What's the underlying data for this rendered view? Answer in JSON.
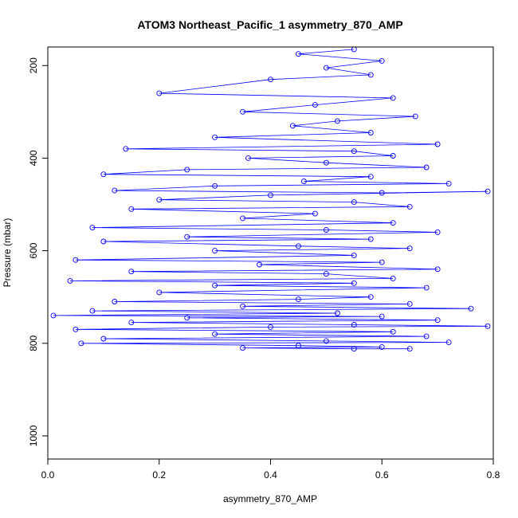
{
  "chart_data": {
    "type": "scatter",
    "title": "ATOM3 Northeast_Pacific_1 asymmetry_870_AMP",
    "xlabel": "asymmetry_870_AMP",
    "ylabel": "Pressure (mbar)",
    "xlim": [
      0.0,
      0.8
    ],
    "ylim": [
      1050,
      160
    ],
    "y_reversed": true,
    "x_ticks": [
      0.0,
      0.2,
      0.4,
      0.6,
      0.8
    ],
    "x_tick_labels": [
      "0.0",
      "0.2",
      "0.4",
      "0.6",
      "0.8"
    ],
    "y_ticks": [
      200,
      400,
      600,
      800,
      1000
    ],
    "y_tick_labels": [
      "200",
      "400",
      "600",
      "800",
      "1000"
    ],
    "grid": false,
    "legend": "none",
    "series": [
      {
        "color": "#0000ff",
        "marker": "open-circle",
        "connected": true,
        "points": [
          [
            0.55,
            165
          ],
          [
            0.45,
            175
          ],
          [
            0.6,
            190
          ],
          [
            0.5,
            205
          ],
          [
            0.58,
            220
          ],
          [
            0.4,
            230
          ],
          [
            0.2,
            260
          ],
          [
            0.62,
            270
          ],
          [
            0.48,
            285
          ],
          [
            0.35,
            300
          ],
          [
            0.66,
            310
          ],
          [
            0.52,
            320
          ],
          [
            0.44,
            330
          ],
          [
            0.58,
            345
          ],
          [
            0.3,
            355
          ],
          [
            0.7,
            370
          ],
          [
            0.14,
            380
          ],
          [
            0.55,
            385
          ],
          [
            0.62,
            395
          ],
          [
            0.36,
            400
          ],
          [
            0.5,
            410
          ],
          [
            0.68,
            420
          ],
          [
            0.25,
            425
          ],
          [
            0.1,
            435
          ],
          [
            0.58,
            440
          ],
          [
            0.46,
            450
          ],
          [
            0.72,
            455
          ],
          [
            0.3,
            460
          ],
          [
            0.12,
            470
          ],
          [
            0.6,
            475
          ],
          [
            0.79,
            472
          ],
          [
            0.4,
            480
          ],
          [
            0.2,
            490
          ],
          [
            0.55,
            495
          ],
          [
            0.65,
            505
          ],
          [
            0.15,
            510
          ],
          [
            0.48,
            520
          ],
          [
            0.35,
            530
          ],
          [
            0.62,
            540
          ],
          [
            0.08,
            550
          ],
          [
            0.5,
            555
          ],
          [
            0.7,
            560
          ],
          [
            0.25,
            570
          ],
          [
            0.58,
            575
          ],
          [
            0.1,
            580
          ],
          [
            0.45,
            590
          ],
          [
            0.65,
            595
          ],
          [
            0.3,
            600
          ],
          [
            0.55,
            610
          ],
          [
            0.05,
            620
          ],
          [
            0.6,
            625
          ],
          [
            0.38,
            630
          ],
          [
            0.7,
            640
          ],
          [
            0.15,
            645
          ],
          [
            0.5,
            650
          ],
          [
            0.62,
            660
          ],
          [
            0.04,
            665
          ],
          [
            0.55,
            670
          ],
          [
            0.3,
            675
          ],
          [
            0.68,
            680
          ],
          [
            0.2,
            690
          ],
          [
            0.58,
            700
          ],
          [
            0.45,
            705
          ],
          [
            0.12,
            710
          ],
          [
            0.65,
            715
          ],
          [
            0.35,
            720
          ],
          [
            0.76,
            725
          ],
          [
            0.08,
            730
          ],
          [
            0.52,
            735
          ],
          [
            0.01,
            740
          ],
          [
            0.6,
            742
          ],
          [
            0.25,
            745
          ],
          [
            0.7,
            750
          ],
          [
            0.15,
            755
          ],
          [
            0.55,
            760
          ],
          [
            0.79,
            763
          ],
          [
            0.4,
            765
          ],
          [
            0.05,
            770
          ],
          [
            0.62,
            775
          ],
          [
            0.3,
            780
          ],
          [
            0.68,
            785
          ],
          [
            0.1,
            790
          ],
          [
            0.5,
            795
          ],
          [
            0.72,
            798
          ],
          [
            0.06,
            800
          ],
          [
            0.45,
            805
          ],
          [
            0.6,
            808
          ],
          [
            0.35,
            810
          ],
          [
            0.55,
            812
          ],
          [
            0.65,
            812
          ]
        ]
      }
    ]
  }
}
